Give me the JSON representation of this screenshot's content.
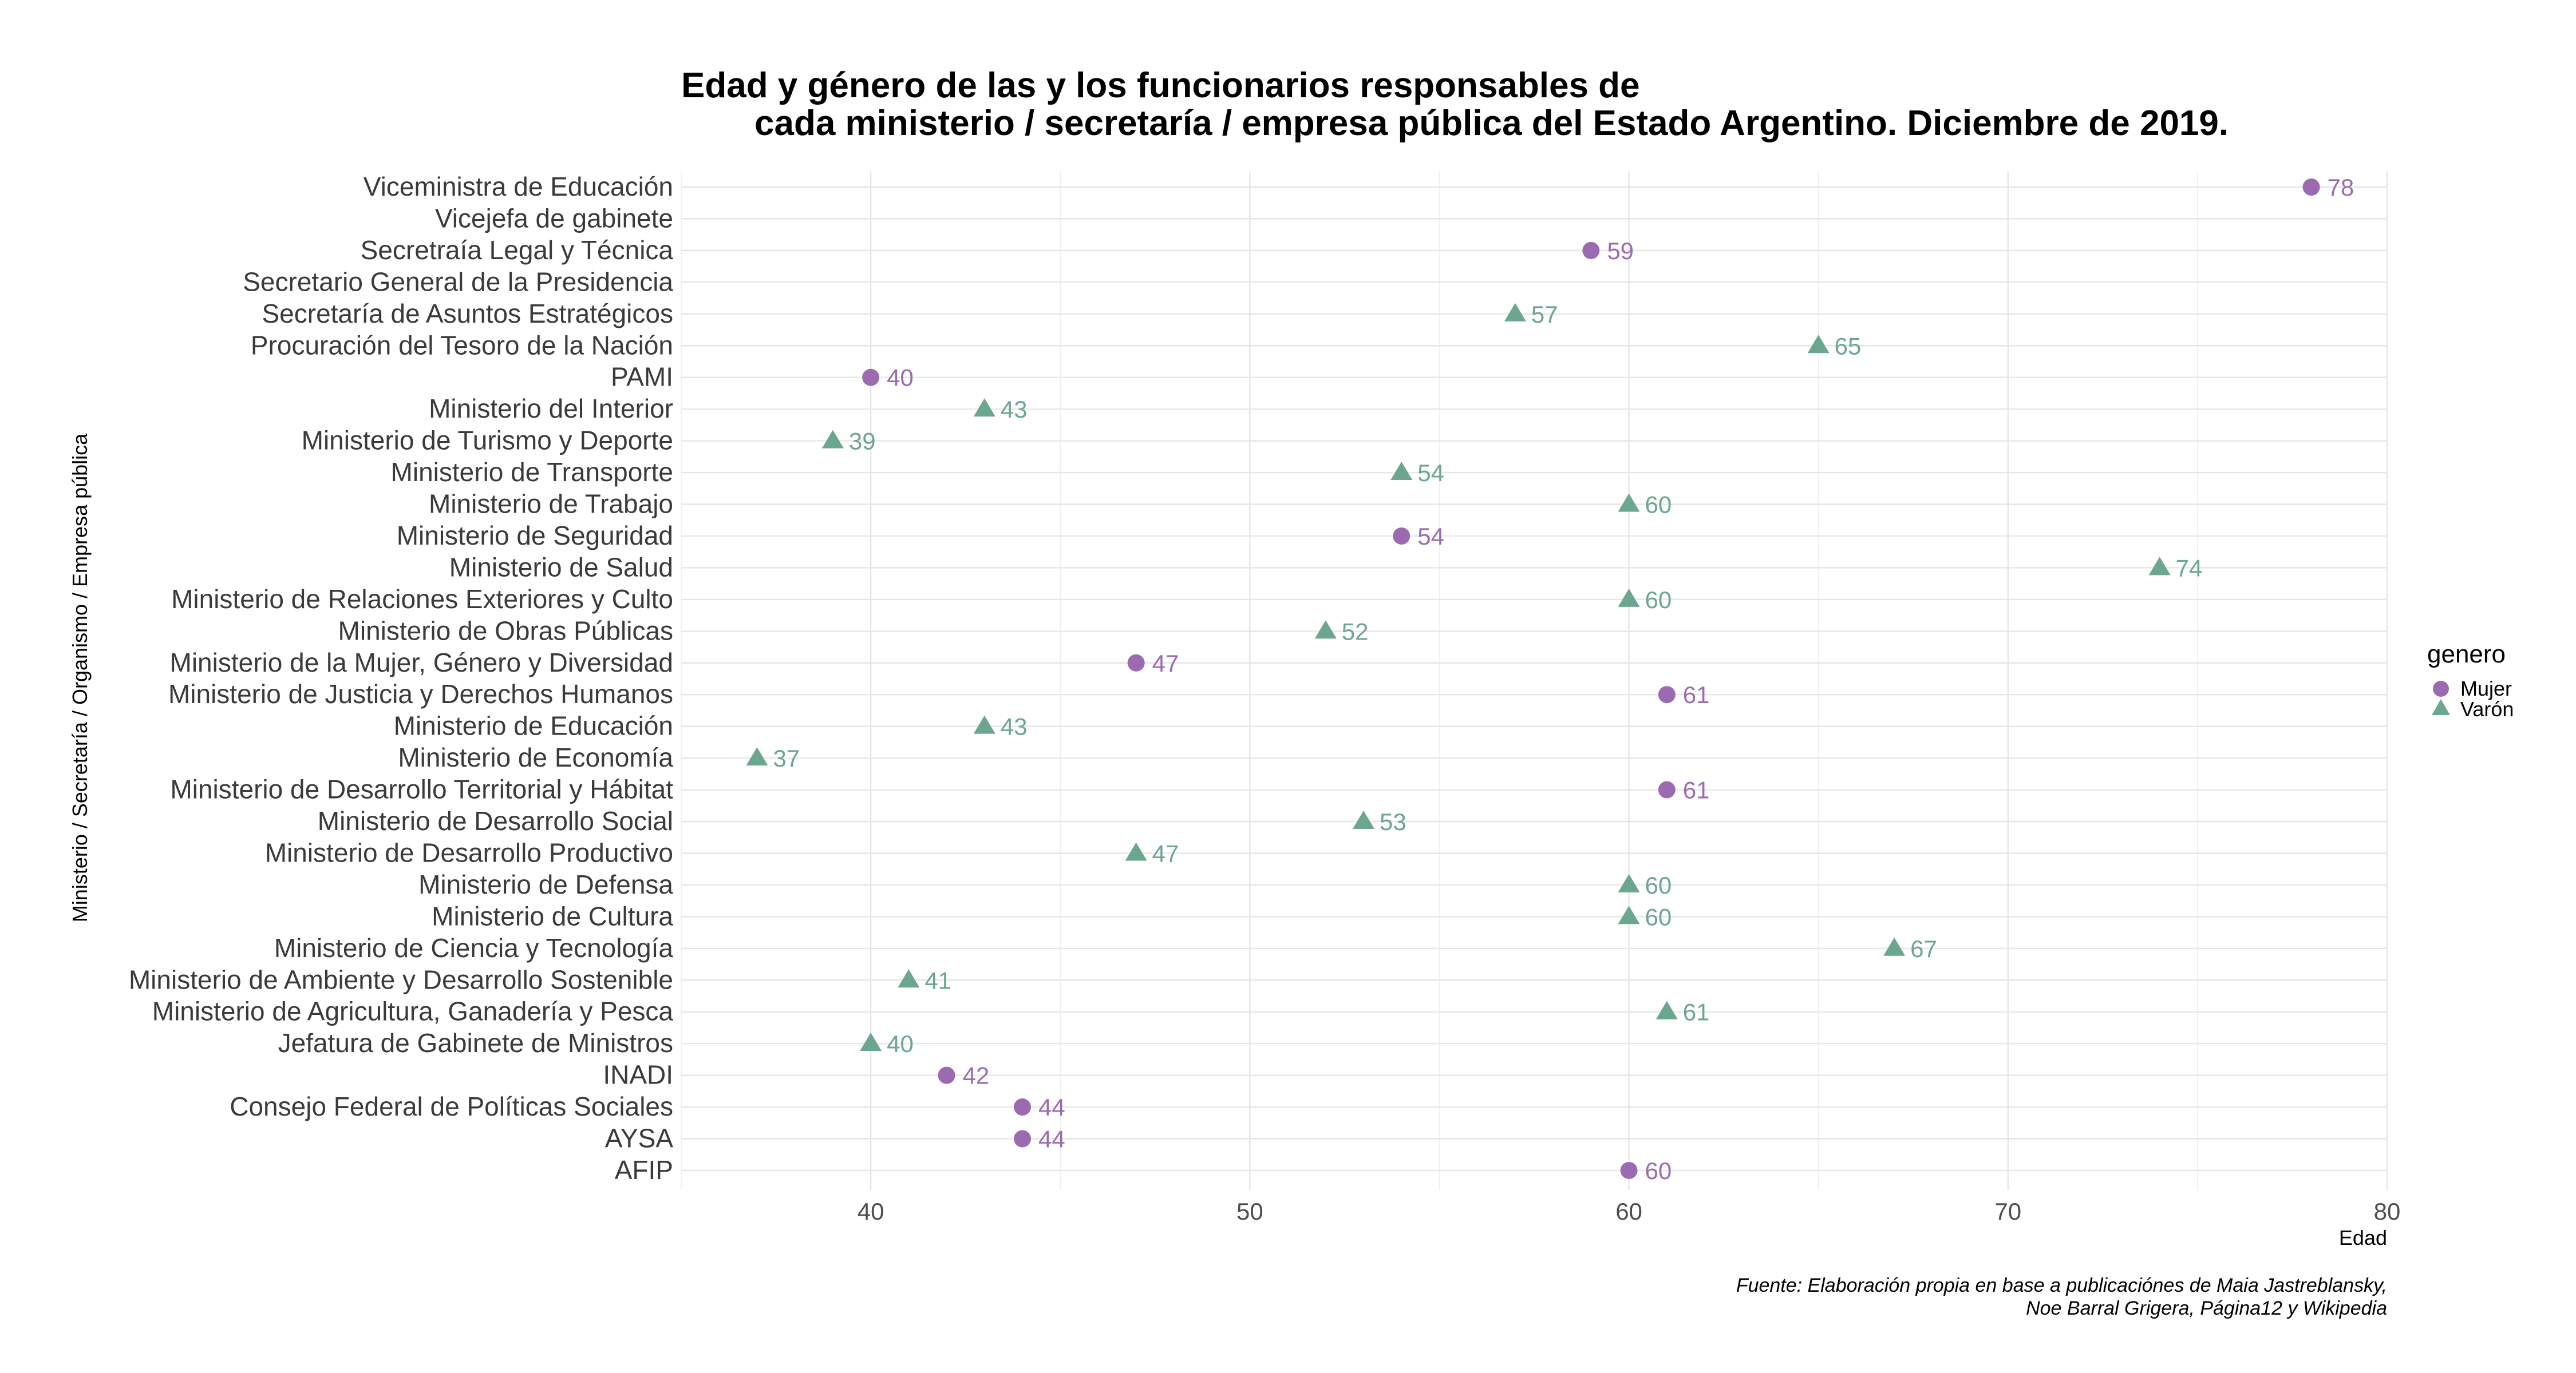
{
  "chart_data": {
    "type": "scatter",
    "title_line1": "Edad y género de las y los funcionarios responsables de",
    "title_line2": "cada ministerio / secretaría / empresa pública del Estado Argentino. Diciembre de 2019.",
    "xlabel": "Edad",
    "ylabel": "Ministerio  / Secretaría / Organismo / Empresa pública",
    "xlim": [
      35,
      80
    ],
    "xticks": [
      40,
      50,
      60,
      70,
      80
    ],
    "grid": true,
    "legend": {
      "title": "genero",
      "position": "right",
      "entries": [
        {
          "label": "Mujer",
          "shape": "circle",
          "color": "#9B6BB2"
        },
        {
          "label": "Varón",
          "shape": "triangle",
          "color": "#6BA68E"
        }
      ]
    },
    "caption_line1": "Fuente: Elaboración propia en base a publicaciónes de Maia Jastreblansky,",
    "caption_line2": "Noe Barral Grigera, Página12 y Wikipedia",
    "categories": [
      "Viceministra de Educación",
      "Vicejefa de gabinete",
      "Secretraía Legal y Técnica",
      "Secretario General de la Presidencia",
      "Secretaría de Asuntos Estratégicos",
      "Procuración del Tesoro de la Nación",
      "PAMI",
      "Ministerio del Interior",
      "Ministerio de Turismo y Deporte",
      "Ministerio de Transporte",
      "Ministerio de Trabajo",
      "Ministerio de Seguridad",
      "Ministerio de Salud",
      "Ministerio de Relaciones Exteriores y Culto",
      "Ministerio de Obras Públicas",
      "Ministerio de la Mujer, Género y Diversidad",
      "Ministerio de Justicia y Derechos Humanos",
      "Ministerio de Educación",
      "Ministerio de Economía",
      "Ministerio de Desarrollo Territorial y Hábitat",
      "Ministerio de Desarrollo Social",
      "Ministerio de Desarrollo Productivo",
      "Ministerio de Defensa",
      "Ministerio de Cultura",
      "Ministerio de Ciencia y Tecnología",
      "Ministerio de Ambiente y Desarrollo Sostenible",
      "Ministerio de Agricultura, Ganadería y Pesca",
      "Jefatura de Gabinete de Ministros",
      "INADI",
      "Consejo Federal de Políticas Sociales",
      "AYSA",
      "AFIP"
    ],
    "points": [
      {
        "category": "Viceministra de Educación",
        "value": 78,
        "genero": "Mujer"
      },
      {
        "category": "Secretraía Legal y Técnica",
        "value": 59,
        "genero": "Mujer"
      },
      {
        "category": "Secretaría de Asuntos Estratégicos",
        "value": 57,
        "genero": "Varón"
      },
      {
        "category": "Procuración del Tesoro de la Nación",
        "value": 65,
        "genero": "Varón"
      },
      {
        "category": "PAMI",
        "value": 40,
        "genero": "Mujer"
      },
      {
        "category": "Ministerio del Interior",
        "value": 43,
        "genero": "Varón"
      },
      {
        "category": "Ministerio de Turismo y Deporte",
        "value": 39,
        "genero": "Varón"
      },
      {
        "category": "Ministerio de Transporte",
        "value": 54,
        "genero": "Varón"
      },
      {
        "category": "Ministerio de Trabajo",
        "value": 60,
        "genero": "Varón"
      },
      {
        "category": "Ministerio de Seguridad",
        "value": 54,
        "genero": "Mujer"
      },
      {
        "category": "Ministerio de Salud",
        "value": 74,
        "genero": "Varón"
      },
      {
        "category": "Ministerio de Relaciones Exteriores y Culto",
        "value": 60,
        "genero": "Varón"
      },
      {
        "category": "Ministerio de Obras Públicas",
        "value": 52,
        "genero": "Varón"
      },
      {
        "category": "Ministerio de la Mujer, Género y Diversidad",
        "value": 47,
        "genero": "Mujer"
      },
      {
        "category": "Ministerio de Justicia y Derechos Humanos",
        "value": 61,
        "genero": "Mujer"
      },
      {
        "category": "Ministerio de Educación",
        "value": 43,
        "genero": "Varón"
      },
      {
        "category": "Ministerio de Economía",
        "value": 37,
        "genero": "Varón"
      },
      {
        "category": "Ministerio de Desarrollo Territorial y Hábitat",
        "value": 61,
        "genero": "Mujer"
      },
      {
        "category": "Ministerio de Desarrollo Social",
        "value": 53,
        "genero": "Varón"
      },
      {
        "category": "Ministerio de Desarrollo Productivo",
        "value": 47,
        "genero": "Varón"
      },
      {
        "category": "Ministerio de Defensa",
        "value": 60,
        "genero": "Varón"
      },
      {
        "category": "Ministerio de Cultura",
        "value": 60,
        "genero": "Varón"
      },
      {
        "category": "Ministerio de Ciencia y Tecnología",
        "value": 67,
        "genero": "Varón"
      },
      {
        "category": "Ministerio de Ambiente y Desarrollo Sostenible",
        "value": 41,
        "genero": "Varón"
      },
      {
        "category": "Ministerio de Agricultura, Ganadería y Pesca",
        "value": 61,
        "genero": "Varón"
      },
      {
        "category": "Jefatura de Gabinete de Ministros",
        "value": 40,
        "genero": "Varón"
      },
      {
        "category": "INADI",
        "value": 42,
        "genero": "Mujer"
      },
      {
        "category": "Consejo Federal de Políticas Sociales",
        "value": 44,
        "genero": "Mujer"
      },
      {
        "category": "AYSA",
        "value": 44,
        "genero": "Mujer"
      },
      {
        "category": "AFIP",
        "value": 60,
        "genero": "Mujer"
      }
    ]
  }
}
